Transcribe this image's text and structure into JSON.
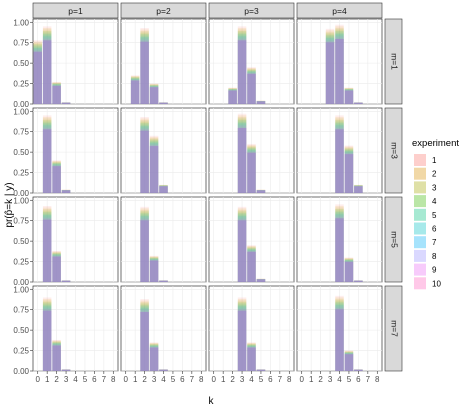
{
  "chart_data": {
    "type": "bar",
    "xlabel": "k",
    "ylabel": "pr(p̂=k | y)",
    "col_facets": [
      "p=1",
      "p=2",
      "p=3",
      "p=4"
    ],
    "row_facets": [
      "m=1",
      "m=3",
      "m=5",
      "m=7"
    ],
    "x_ticks": [
      "0",
      "1",
      "2",
      "3",
      "4",
      "5",
      "6",
      "7",
      "8"
    ],
    "y_ticks": [
      "0.00",
      "0.25",
      "0.50",
      "0.75",
      "1.00"
    ],
    "ylim": [
      0,
      1
    ],
    "bar_style": "stacked translucent bars, one layer per experiment, overlaid at alpha ~0.3",
    "legend": {
      "title": "experiment",
      "placement": "right",
      "entries": [
        "1",
        "2",
        "3",
        "4",
        "5",
        "6",
        "7",
        "8",
        "9",
        "10"
      ],
      "colors": [
        "#F8766D",
        "#D89000",
        "#A3A500",
        "#39B600",
        "#00BF7D",
        "#00BFC4",
        "#00B0F6",
        "#9590FF",
        "#E76BF3",
        "#FF62BC"
      ]
    },
    "panels": [
      {
        "m": "m=1",
        "p": "p=1",
        "bars": [
          {
            "k": 0,
            "max": 0.78
          },
          {
            "k": 1,
            "max": 0.95
          },
          {
            "k": 2,
            "max": 0.27
          },
          {
            "k": 3,
            "max": 0.02
          }
        ]
      },
      {
        "m": "m=1",
        "p": "p=2",
        "bars": [
          {
            "k": 1,
            "max": 0.35
          },
          {
            "k": 2,
            "max": 0.93
          },
          {
            "k": 3,
            "max": 0.25
          },
          {
            "k": 4,
            "max": 0.02
          }
        ]
      },
      {
        "m": "m=1",
        "p": "p=3",
        "bars": [
          {
            "k": 2,
            "max": 0.2
          },
          {
            "k": 3,
            "max": 0.95
          },
          {
            "k": 4,
            "max": 0.45
          },
          {
            "k": 5,
            "max": 0.04
          }
        ]
      },
      {
        "m": "m=1",
        "p": "p=4",
        "bars": [
          {
            "k": 3,
            "max": 0.92
          },
          {
            "k": 4,
            "max": 0.97
          },
          {
            "k": 5,
            "max": 0.2
          },
          {
            "k": 6,
            "max": 0.02
          }
        ]
      },
      {
        "m": "m=3",
        "p": "p=1",
        "bars": [
          {
            "k": 1,
            "max": 0.95
          },
          {
            "k": 2,
            "max": 0.4
          },
          {
            "k": 3,
            "max": 0.04
          }
        ]
      },
      {
        "m": "m=3",
        "p": "p=2",
        "bars": [
          {
            "k": 2,
            "max": 0.93
          },
          {
            "k": 3,
            "max": 0.7
          },
          {
            "k": 4,
            "max": 0.1
          }
        ]
      },
      {
        "m": "m=3",
        "p": "p=3",
        "bars": [
          {
            "k": 3,
            "max": 0.97
          },
          {
            "k": 4,
            "max": 0.6
          },
          {
            "k": 5,
            "max": 0.04
          }
        ]
      },
      {
        "m": "m=3",
        "p": "p=4",
        "bars": [
          {
            "k": 4,
            "max": 0.95
          },
          {
            "k": 5,
            "max": 0.58
          },
          {
            "k": 6,
            "max": 0.1
          }
        ]
      },
      {
        "m": "m=5",
        "p": "p=1",
        "bars": [
          {
            "k": 1,
            "max": 0.93
          },
          {
            "k": 2,
            "max": 0.38
          },
          {
            "k": 3,
            "max": 0.02
          }
        ]
      },
      {
        "m": "m=5",
        "p": "p=2",
        "bars": [
          {
            "k": 2,
            "max": 0.92
          },
          {
            "k": 3,
            "max": 0.32
          },
          {
            "k": 4,
            "max": 0.02
          }
        ]
      },
      {
        "m": "m=5",
        "p": "p=3",
        "bars": [
          {
            "k": 3,
            "max": 0.92
          },
          {
            "k": 4,
            "max": 0.45
          },
          {
            "k": 5,
            "max": 0.04
          }
        ]
      },
      {
        "m": "m=5",
        "p": "p=4",
        "bars": [
          {
            "k": 4,
            "max": 0.95
          },
          {
            "k": 5,
            "max": 0.3
          },
          {
            "k": 6,
            "max": 0.02
          }
        ]
      },
      {
        "m": "m=7",
        "p": "p=1",
        "bars": [
          {
            "k": 1,
            "max": 0.9
          },
          {
            "k": 2,
            "max": 0.38
          },
          {
            "k": 3,
            "max": 0.02
          }
        ]
      },
      {
        "m": "m=7",
        "p": "p=2",
        "bars": [
          {
            "k": 2,
            "max": 0.88
          },
          {
            "k": 3,
            "max": 0.35
          },
          {
            "k": 4,
            "max": 0.02
          }
        ]
      },
      {
        "m": "m=7",
        "p": "p=3",
        "bars": [
          {
            "k": 3,
            "max": 0.9
          },
          {
            "k": 4,
            "max": 0.35
          },
          {
            "k": 5,
            "max": 0.02
          }
        ]
      },
      {
        "m": "m=7",
        "p": "p=4",
        "bars": [
          {
            "k": 4,
            "max": 0.92
          },
          {
            "k": 5,
            "max": 0.25
          },
          {
            "k": 6,
            "max": 0.02
          }
        ]
      }
    ]
  }
}
